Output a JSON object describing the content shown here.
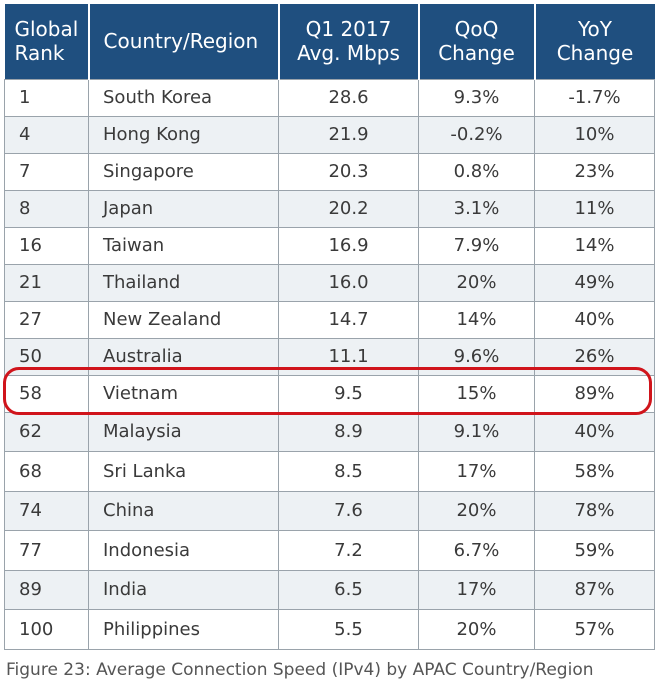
{
  "chart_data": {
    "type": "table",
    "title": "Figure 23: Average Connection Speed (IPv4) by APAC Country/Region",
    "columns": [
      [
        "Global",
        "Rank"
      ],
      [
        "Country/Region"
      ],
      [
        "Q1 2017",
        "Avg. Mbps"
      ],
      [
        "QoQ",
        "Change"
      ],
      [
        "YoY",
        "Change"
      ]
    ],
    "rows": [
      {
        "rank": "1",
        "country": "South Korea",
        "mbps": "28.6",
        "qoq": "9.3%",
        "yoy": "-1.7%"
      },
      {
        "rank": "4",
        "country": "Hong Kong",
        "mbps": "21.9",
        "qoq": "-0.2%",
        "yoy": "10%"
      },
      {
        "rank": "7",
        "country": "Singapore",
        "mbps": "20.3",
        "qoq": "0.8%",
        "yoy": "23%"
      },
      {
        "rank": "8",
        "country": "Japan",
        "mbps": "20.2",
        "qoq": "3.1%",
        "yoy": "11%"
      },
      {
        "rank": "16",
        "country": "Taiwan",
        "mbps": "16.9",
        "qoq": "7.9%",
        "yoy": "14%"
      },
      {
        "rank": "21",
        "country": "Thailand",
        "mbps": "16.0",
        "qoq": "20%",
        "yoy": "49%"
      },
      {
        "rank": "27",
        "country": "New Zealand",
        "mbps": "14.7",
        "qoq": "14%",
        "yoy": "40%"
      },
      {
        "rank": "50",
        "country": "Australia",
        "mbps": "11.1",
        "qoq": "9.6%",
        "yoy": "26%"
      },
      {
        "rank": "58",
        "country": "Vietnam",
        "mbps": "9.5",
        "qoq": "15%",
        "yoy": "89%"
      },
      {
        "rank": "62",
        "country": "Malaysia",
        "mbps": "8.9",
        "qoq": "9.1%",
        "yoy": "40%"
      },
      {
        "rank": "68",
        "country": "Sri Lanka",
        "mbps": "8.5",
        "qoq": "17%",
        "yoy": "58%"
      },
      {
        "rank": "74",
        "country": "China",
        "mbps": "7.6",
        "qoq": "20%",
        "yoy": "78%"
      },
      {
        "rank": "77",
        "country": "Indonesia",
        "mbps": "7.2",
        "qoq": "6.7%",
        "yoy": "59%"
      },
      {
        "rank": "89",
        "country": "India",
        "mbps": "6.5",
        "qoq": "17%",
        "yoy": "87%"
      },
      {
        "rank": "100",
        "country": "Philippines",
        "mbps": "5.5",
        "qoq": "20%",
        "yoy": "57%"
      }
    ],
    "highlighted_row": "Vietnam",
    "colors": {
      "header_bg": "#1f4f7f",
      "header_text": "#ffffff",
      "stripe": "#edf1f4",
      "highlight_outline": "#d0141b"
    }
  }
}
